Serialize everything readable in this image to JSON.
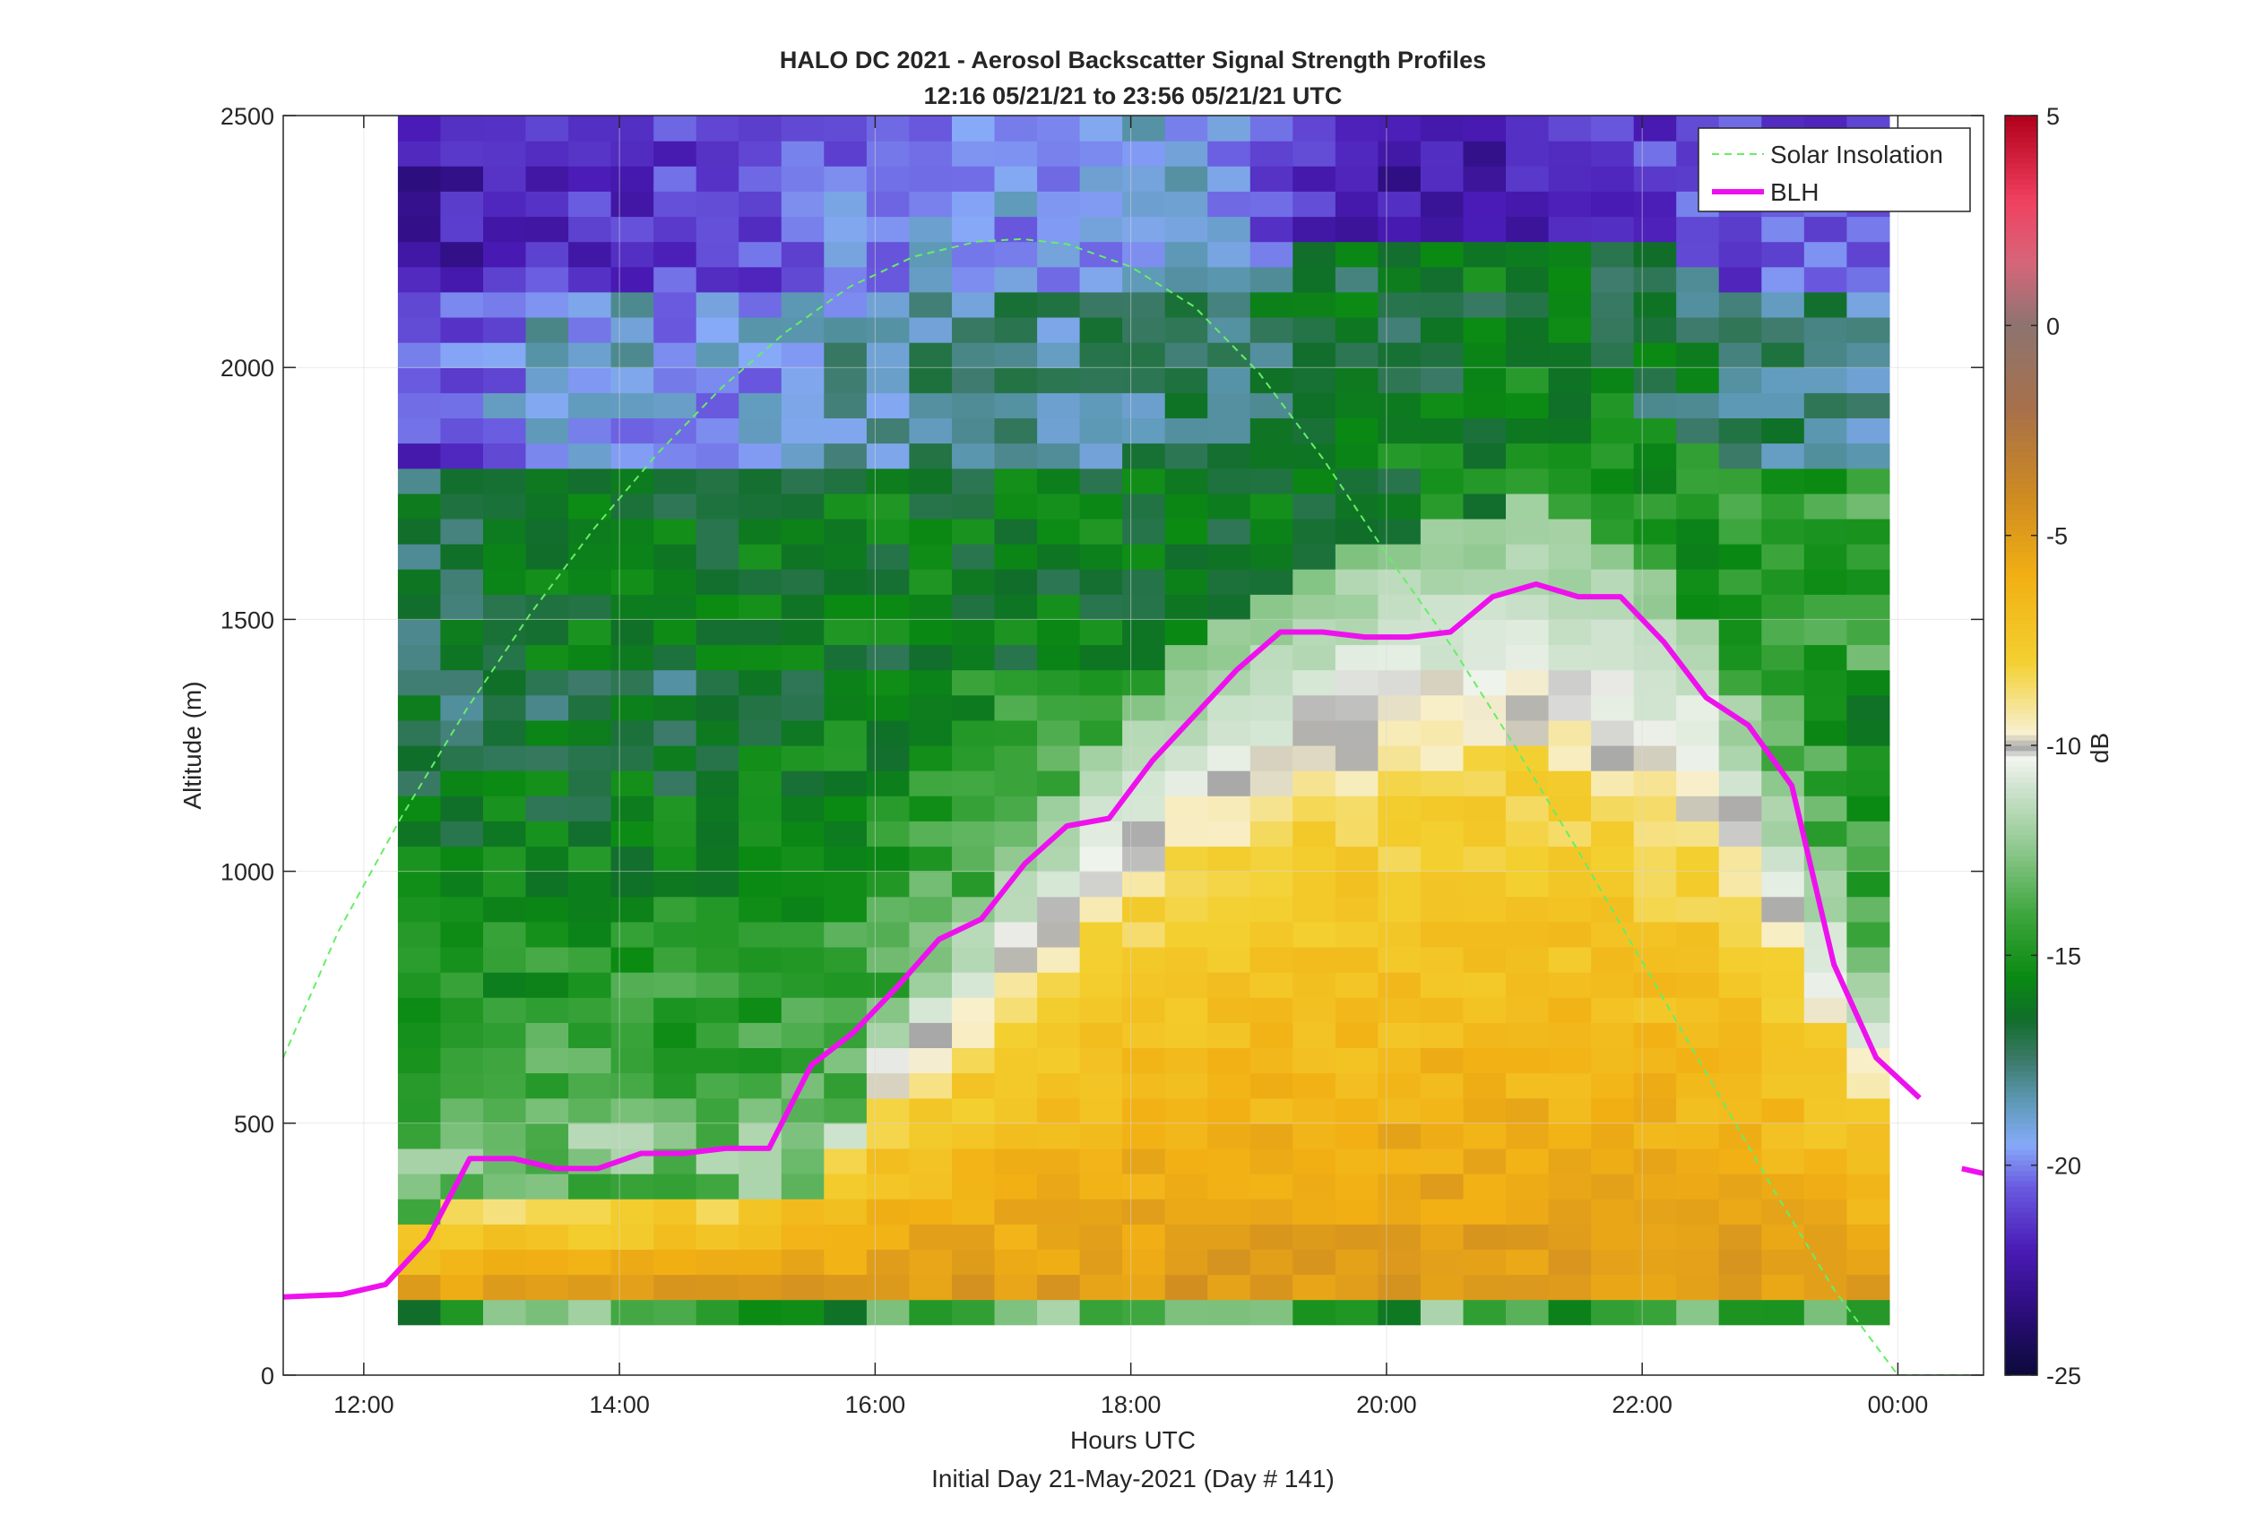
{
  "chart_data": {
    "type": "heatmap",
    "title": "HALO DC 2021 - Aerosol Backscatter Signal Strength Profiles",
    "subtitle": "12:16 05/21/21 to 23:56 05/21/21  UTC",
    "xlabel": "Hours UTC",
    "xlabel2": "Initial Day 21-May-2021 (Day # 141)",
    "ylabel": "Altitude (m)",
    "colorbar_label": "dB",
    "xlim": [
      11.37,
      24.67
    ],
    "ylim": [
      0,
      2500
    ],
    "clim": [
      -25,
      5
    ],
    "grid": true,
    "legend_position": "top-right",
    "x_ticks": [
      {
        "value": 12,
        "label": "12:00"
      },
      {
        "value": 14,
        "label": "14:00"
      },
      {
        "value": 16,
        "label": "16:00"
      },
      {
        "value": 18,
        "label": "18:00"
      },
      {
        "value": 20,
        "label": "20:00"
      },
      {
        "value": 22,
        "label": "22:00"
      },
      {
        "value": 24,
        "label": "00:00"
      }
    ],
    "y_ticks": [
      {
        "value": 0,
        "label": "0"
      },
      {
        "value": 500,
        "label": "500"
      },
      {
        "value": 1000,
        "label": "1000"
      },
      {
        "value": 1500,
        "label": "1500"
      },
      {
        "value": 2000,
        "label": "2000"
      },
      {
        "value": 2500,
        "label": "2500"
      }
    ],
    "colorbar_ticks": [
      {
        "value": 5,
        "label": "5"
      },
      {
        "value": 0,
        "label": "0"
      },
      {
        "value": -5,
        "label": "-5"
      },
      {
        "value": -10,
        "label": "-10"
      },
      {
        "value": -15,
        "label": "-15"
      },
      {
        "value": -20,
        "label": "-20"
      },
      {
        "value": -25,
        "label": "-25"
      }
    ],
    "colormap": [
      {
        "v": -25,
        "c": "#0b0a3a"
      },
      {
        "v": -23.5,
        "c": "#2b0d7a"
      },
      {
        "v": -22,
        "c": "#4a1bb6"
      },
      {
        "v": -20.5,
        "c": "#6a5be0"
      },
      {
        "v": -19.5,
        "c": "#87aaf8"
      },
      {
        "v": -18.5,
        "c": "#5e9ab8"
      },
      {
        "v": -17.5,
        "c": "#3d7a6a"
      },
      {
        "v": -16.5,
        "c": "#106e2a"
      },
      {
        "v": -15.5,
        "c": "#0a8a12"
      },
      {
        "v": -14,
        "c": "#3ea63e"
      },
      {
        "v": -12.5,
        "c": "#8cc78c"
      },
      {
        "v": -11,
        "c": "#cfe3cf"
      },
      {
        "v": -10.3,
        "c": "#f3f5ef"
      },
      {
        "v": -10.05,
        "c": "#a8a8a8"
      },
      {
        "v": -9.7,
        "c": "#f8f0d0"
      },
      {
        "v": -8,
        "c": "#f3d030"
      },
      {
        "v": -6,
        "c": "#f2b014"
      },
      {
        "v": -4,
        "c": "#cd8a22"
      },
      {
        "v": -2,
        "c": "#a8704a"
      },
      {
        "v": 0,
        "c": "#8d7470"
      },
      {
        "v": 1.5,
        "c": "#d6667a"
      },
      {
        "v": 3,
        "c": "#f04060"
      },
      {
        "v": 5,
        "c": "#b0001a"
      }
    ],
    "heatmap": {
      "x_start": 12.2667,
      "x_end": 23.9333,
      "y_start": 100,
      "y_end": 2500,
      "n_x": 35,
      "n_y": 48,
      "note_values": "dB grid generated procedurally from profile anchors",
      "profile_anchors": [
        {
          "x": 12.3,
          "blh": 400,
          "top": [
            -17,
            -21.5,
            -22.5
          ]
        },
        {
          "x": 13.5,
          "blh": 420,
          "top": [
            -16,
            -19,
            -21.5
          ]
        },
        {
          "x": 15.0,
          "blh": 450,
          "top": [
            -16,
            -19.5,
            -21
          ]
        },
        {
          "x": 16.3,
          "blh": 700,
          "top": [
            -16,
            -18,
            -19.5
          ]
        },
        {
          "x": 17.5,
          "blh": 1050,
          "top": [
            -16,
            -18,
            -19.5
          ]
        },
        {
          "x": 18.5,
          "blh": 1300,
          "top": [
            -16,
            -17.5,
            -19
          ]
        },
        {
          "x": 19.8,
          "blh": 1470,
          "top": [
            -16,
            -16.5,
            -22.5
          ]
        },
        {
          "x": 21.2,
          "blh": 1560,
          "top": [
            -15.5,
            -16,
            -22
          ]
        },
        {
          "x": 22.5,
          "blh": 1350,
          "top": [
            -15,
            -17,
            -21
          ]
        },
        {
          "x": 23.9,
          "blh": 650,
          "top": [
            -14,
            -18,
            -20.5
          ]
        }
      ]
    },
    "series": [
      {
        "name": "Solar Insolation",
        "style": "dashed",
        "color": "#66ee66",
        "x": [
          11.37,
          11.8,
          12.3,
          12.8,
          13.3,
          13.8,
          14.3,
          14.8,
          15.3,
          15.8,
          16.3,
          16.8,
          17.15,
          17.5,
          18.0,
          18.5,
          19.0,
          19.5,
          20.0,
          20.5,
          21.0,
          21.5,
          22.0,
          22.5,
          23.0,
          23.5,
          24.0,
          24.3,
          24.67
        ],
        "y": [
          630,
          880,
          1110,
          1320,
          1510,
          1680,
          1830,
          1960,
          2070,
          2160,
          2220,
          2250,
          2255,
          2245,
          2200,
          2120,
          1990,
          1820,
          1630,
          1450,
          1250,
          1040,
          820,
          600,
          380,
          170,
          0,
          0,
          0
        ]
      },
      {
        "name": "BLH",
        "style": "solid",
        "color": "#ee11ee",
        "segments": [
          {
            "x": [
              11.37,
              11.83,
              12.17,
              12.5,
              12.83,
              13.17,
              13.5,
              13.83,
              14.17,
              14.5,
              14.83,
              15.17,
              15.5,
              15.83,
              16.17,
              16.5,
              16.83,
              17.17,
              17.5,
              17.83,
              18.17,
              18.5,
              18.83,
              19.17,
              19.5,
              19.83,
              20.17,
              20.5,
              20.83,
              21.17,
              21.5,
              21.83,
              22.17,
              22.5,
              22.83,
              23.17,
              23.5,
              23.83,
              24.17
            ],
            "y": [
              155,
              160,
              180,
              270,
              430,
              430,
              410,
              410,
              440,
              440,
              450,
              450,
              615,
              680,
              770,
              865,
              905,
              1015,
              1090,
              1105,
              1220,
              1310,
              1400,
              1475,
              1475,
              1465,
              1465,
              1475,
              1545,
              1570,
              1545,
              1545,
              1455,
              1345,
              1290,
              1170,
              815,
              630,
              550
            ]
          },
          {
            "x": [
              24.5,
              24.67
            ],
            "y": [
              410,
              400
            ]
          }
        ]
      }
    ]
  }
}
